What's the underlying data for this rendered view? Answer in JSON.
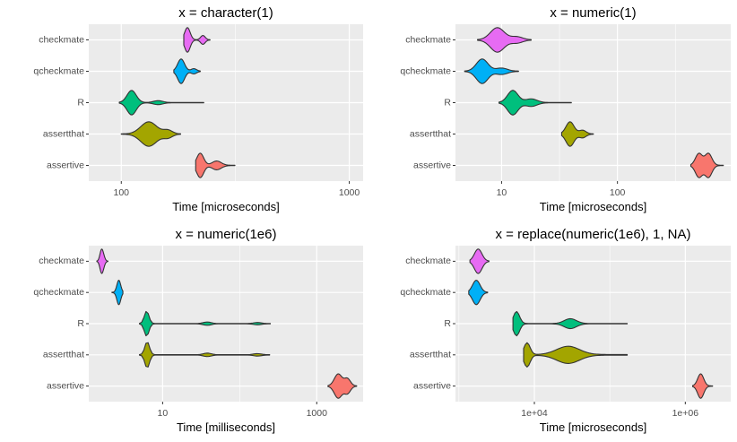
{
  "chart_data": [
    {
      "type": "violin",
      "title": "x = character(1)",
      "xlabel": "Time [microseconds]",
      "xscale": "log10",
      "xlim": [
        72,
        1150
      ],
      "xticks": [
        {
          "v": 100,
          "label": "100"
        },
        {
          "v": 1000,
          "label": "1000"
        }
      ],
      "categories": [
        "checkmate",
        "qcheckmate",
        "R",
        "assertthat",
        "assertive"
      ],
      "series": [
        {
          "name": "checkmate",
          "color": "#E76BF3",
          "min": 188,
          "max": 245,
          "peaks": [
            {
              "v": 195,
              "w": 1.0,
              "s": 0.012
            },
            {
              "v": 228,
              "w": 0.35,
              "s": 0.01
            }
          ]
        },
        {
          "name": "qcheckmate",
          "color": "#00B0F6",
          "min": 170,
          "max": 222,
          "peaks": [
            {
              "v": 183,
              "w": 1.0,
              "s": 0.015
            },
            {
              "v": 208,
              "w": 0.2,
              "s": 0.012
            }
          ]
        },
        {
          "name": "R",
          "color": "#00BF7D",
          "min": 98,
          "max": 230,
          "peaks": [
            {
              "v": 111,
              "w": 1.0,
              "s": 0.02
            },
            {
              "v": 145,
              "w": 0.15,
              "s": 0.02
            }
          ]
        },
        {
          "name": "assertthat",
          "color": "#A3A500",
          "min": 100,
          "max": 182,
          "peaks": [
            {
              "v": 132,
              "w": 1.0,
              "s": 0.035
            },
            {
              "v": 160,
              "w": 0.3,
              "s": 0.02
            }
          ]
        },
        {
          "name": "assertive",
          "color": "#F8766D",
          "min": 212,
          "max": 315,
          "peaks": [
            {
              "v": 222,
              "w": 1.0,
              "s": 0.015
            },
            {
              "v": 262,
              "w": 0.35,
              "s": 0.02
            }
          ]
        }
      ]
    },
    {
      "type": "violin",
      "title": "x = numeric(1)",
      "xlabel": "Time [microseconds]",
      "xscale": "log10",
      "xlim": [
        4,
        950
      ],
      "xticks": [
        {
          "v": 10,
          "label": "10"
        },
        {
          "v": 100,
          "label": "100"
        }
      ],
      "categories": [
        "checkmate",
        "qcheckmate",
        "R",
        "assertthat",
        "assertive"
      ],
      "series": [
        {
          "name": "checkmate",
          "color": "#E76BF3",
          "min": 6.2,
          "max": 18,
          "peaks": [
            {
              "v": 9.2,
              "w": 1.0,
              "s": 0.06
            },
            {
              "v": 13.5,
              "w": 0.25,
              "s": 0.05
            }
          ]
        },
        {
          "name": "qcheckmate",
          "color": "#00B0F6",
          "min": 4.8,
          "max": 14,
          "peaks": [
            {
              "v": 6.8,
              "w": 1.0,
              "s": 0.05
            },
            {
              "v": 10,
              "w": 0.25,
              "s": 0.05
            }
          ]
        },
        {
          "name": "R",
          "color": "#00BF7D",
          "min": 9.5,
          "max": 40,
          "peaks": [
            {
              "v": 12.5,
              "w": 1.0,
              "s": 0.045
            },
            {
              "v": 18,
              "w": 0.3,
              "s": 0.05
            }
          ]
        },
        {
          "name": "assertthat",
          "color": "#A3A500",
          "min": 33,
          "max": 62,
          "peaks": [
            {
              "v": 39,
              "w": 1.0,
              "s": 0.035
            },
            {
              "v": 50,
              "w": 0.3,
              "s": 0.03
            }
          ]
        },
        {
          "name": "assertive",
          "color": "#F8766D",
          "min": 430,
          "max": 820,
          "peaks": [
            {
              "v": 505,
              "w": 1.0,
              "s": 0.03
            },
            {
              "v": 610,
              "w": 1.0,
              "s": 0.03
            }
          ]
        }
      ]
    },
    {
      "type": "violin",
      "title": "x = numeric(1e6)",
      "xlabel": "Time [milliseconds]",
      "xscale": "log10",
      "xlim": [
        1.1,
        4000
      ],
      "xticks": [
        {
          "v": 10,
          "label": "10"
        },
        {
          "v": 1000,
          "label": "1000"
        }
      ],
      "categories": [
        "checkmate",
        "qcheckmate",
        "R",
        "assertthat",
        "assertive"
      ],
      "series": [
        {
          "name": "checkmate",
          "color": "#E76BF3",
          "min": 1.4,
          "max": 1.95,
          "peaks": [
            {
              "v": 1.6,
              "w": 1.0,
              "s": 0.02
            },
            {
              "v": 1.7,
              "w": 0.5,
              "s": 0.02
            }
          ]
        },
        {
          "name": "qcheckmate",
          "color": "#00B0F6",
          "min": 2.2,
          "max": 3.05,
          "peaks": [
            {
              "v": 2.7,
              "w": 1.0,
              "s": 0.025
            }
          ]
        },
        {
          "name": "R",
          "color": "#00BF7D",
          "min": 5,
          "max": 250,
          "peaks": [
            {
              "v": 6.2,
              "w": 1.0,
              "s": 0.03
            },
            {
              "v": 38,
              "w": 0.12,
              "s": 0.05
            },
            {
              "v": 170,
              "w": 0.08,
              "s": 0.05
            }
          ]
        },
        {
          "name": "assertthat",
          "color": "#A3A500",
          "min": 5,
          "max": 245,
          "peaks": [
            {
              "v": 6.3,
              "w": 1.0,
              "s": 0.03
            },
            {
              "v": 38,
              "w": 0.12,
              "s": 0.05
            },
            {
              "v": 170,
              "w": 0.08,
              "s": 0.05
            }
          ]
        },
        {
          "name": "assertive",
          "color": "#F8766D",
          "min": 1400,
          "max": 3300,
          "peaks": [
            {
              "v": 1900,
              "w": 1.0,
              "s": 0.05
            },
            {
              "v": 2500,
              "w": 0.6,
              "s": 0.04
            }
          ]
        }
      ]
    },
    {
      "type": "violin",
      "title": "x = replace(numeric(1e6), 1, NA)",
      "xlabel": "Time [microseconds]",
      "xscale": "log10",
      "xlim": [
        900,
        4000000
      ],
      "xticks": [
        {
          "v": 10000,
          "label": "1e+04"
        },
        {
          "v": 1000000,
          "label": "1e+06"
        }
      ],
      "categories": [
        "checkmate",
        "qcheckmate",
        "R",
        "assertthat",
        "assertive"
      ],
      "series": [
        {
          "name": "checkmate",
          "color": "#E76BF3",
          "min": 1400,
          "max": 2500,
          "peaks": [
            {
              "v": 1800,
              "w": 1.0,
              "s": 0.05
            }
          ]
        },
        {
          "name": "qcheckmate",
          "color": "#00B0F6",
          "min": 1350,
          "max": 2400,
          "peaks": [
            {
              "v": 1700,
              "w": 1.0,
              "s": 0.05
            }
          ]
        },
        {
          "name": "R",
          "color": "#00BF7D",
          "min": 5200,
          "max": 170000,
          "peaks": [
            {
              "v": 5800,
              "w": 1.0,
              "s": 0.04
            },
            {
              "v": 30000,
              "w": 0.4,
              "s": 0.08
            }
          ]
        },
        {
          "name": "assertthat",
          "color": "#A3A500",
          "min": 7200,
          "max": 170000,
          "peaks": [
            {
              "v": 8000,
              "w": 0.5,
              "s": 0.04
            },
            {
              "v": 28000,
              "w": 0.35,
              "s": 0.15
            }
          ]
        },
        {
          "name": "assertive",
          "color": "#F8766D",
          "min": 1250000,
          "max": 2300000,
          "peaks": [
            {
              "v": 1600000,
              "w": 1.0,
              "s": 0.04
            }
          ]
        }
      ]
    }
  ]
}
